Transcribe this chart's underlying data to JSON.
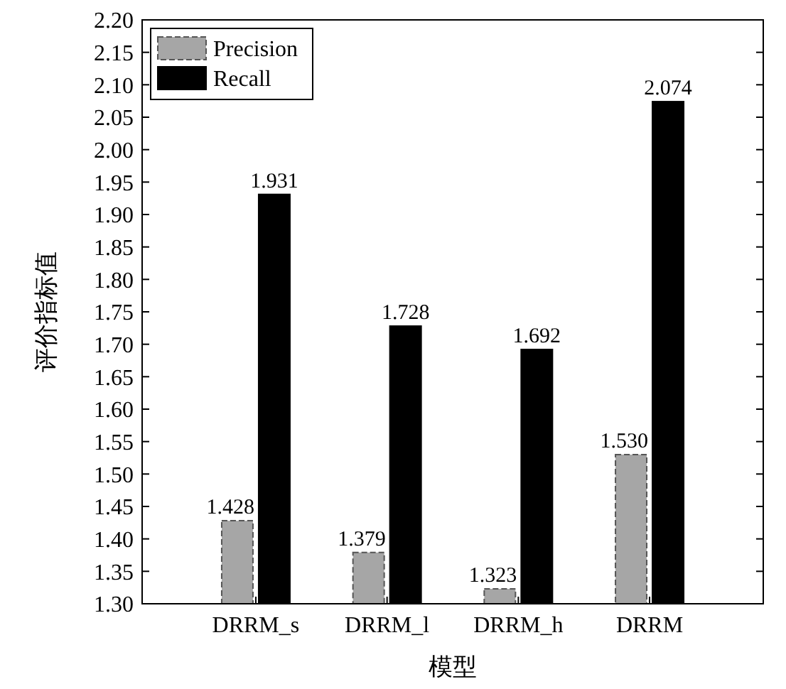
{
  "chart_data": {
    "type": "bar",
    "xlabel": "模型",
    "ylabel": "评价指标值",
    "categories": [
      "DRRM_s",
      "DRRM_l",
      "DRRM_h",
      "DRRM"
    ],
    "series": [
      {
        "name": "Precision",
        "color": "#a6a6a6",
        "values": [
          1.428,
          1.379,
          1.323,
          1.53
        ],
        "value_labels": [
          "1.428",
          "1.379",
          "1.323",
          "1.530"
        ]
      },
      {
        "name": "Recall",
        "color": "#000000",
        "values": [
          1.931,
          1.728,
          1.692,
          2.074
        ],
        "value_labels": [
          "1.931",
          "1.728",
          "1.692",
          "2.074"
        ]
      }
    ],
    "ylim": [
      1.3,
      2.2
    ],
    "yticks": [
      {
        "value": 1.3,
        "label": "1.30"
      },
      1.35,
      {
        "value": 1.4,
        "label": "1.40"
      },
      1.45,
      {
        "value": 1.5,
        "label": "1.50"
      },
      1.55,
      {
        "value": 1.6,
        "label": "1.60"
      },
      1.65,
      {
        "value": 1.7,
        "label": "1.70"
      },
      1.75,
      {
        "value": 1.8,
        "label": "1.80"
      },
      1.85,
      {
        "value": 1.9,
        "label": "1.90"
      },
      1.95,
      {
        "value": 2.0,
        "label": "2.00"
      },
      2.05,
      {
        "value": 2.1,
        "label": "2.10"
      },
      2.15,
      {
        "value": 2.2,
        "label": "2.20"
      }
    ],
    "legend": "top left",
    "grid": false
  }
}
